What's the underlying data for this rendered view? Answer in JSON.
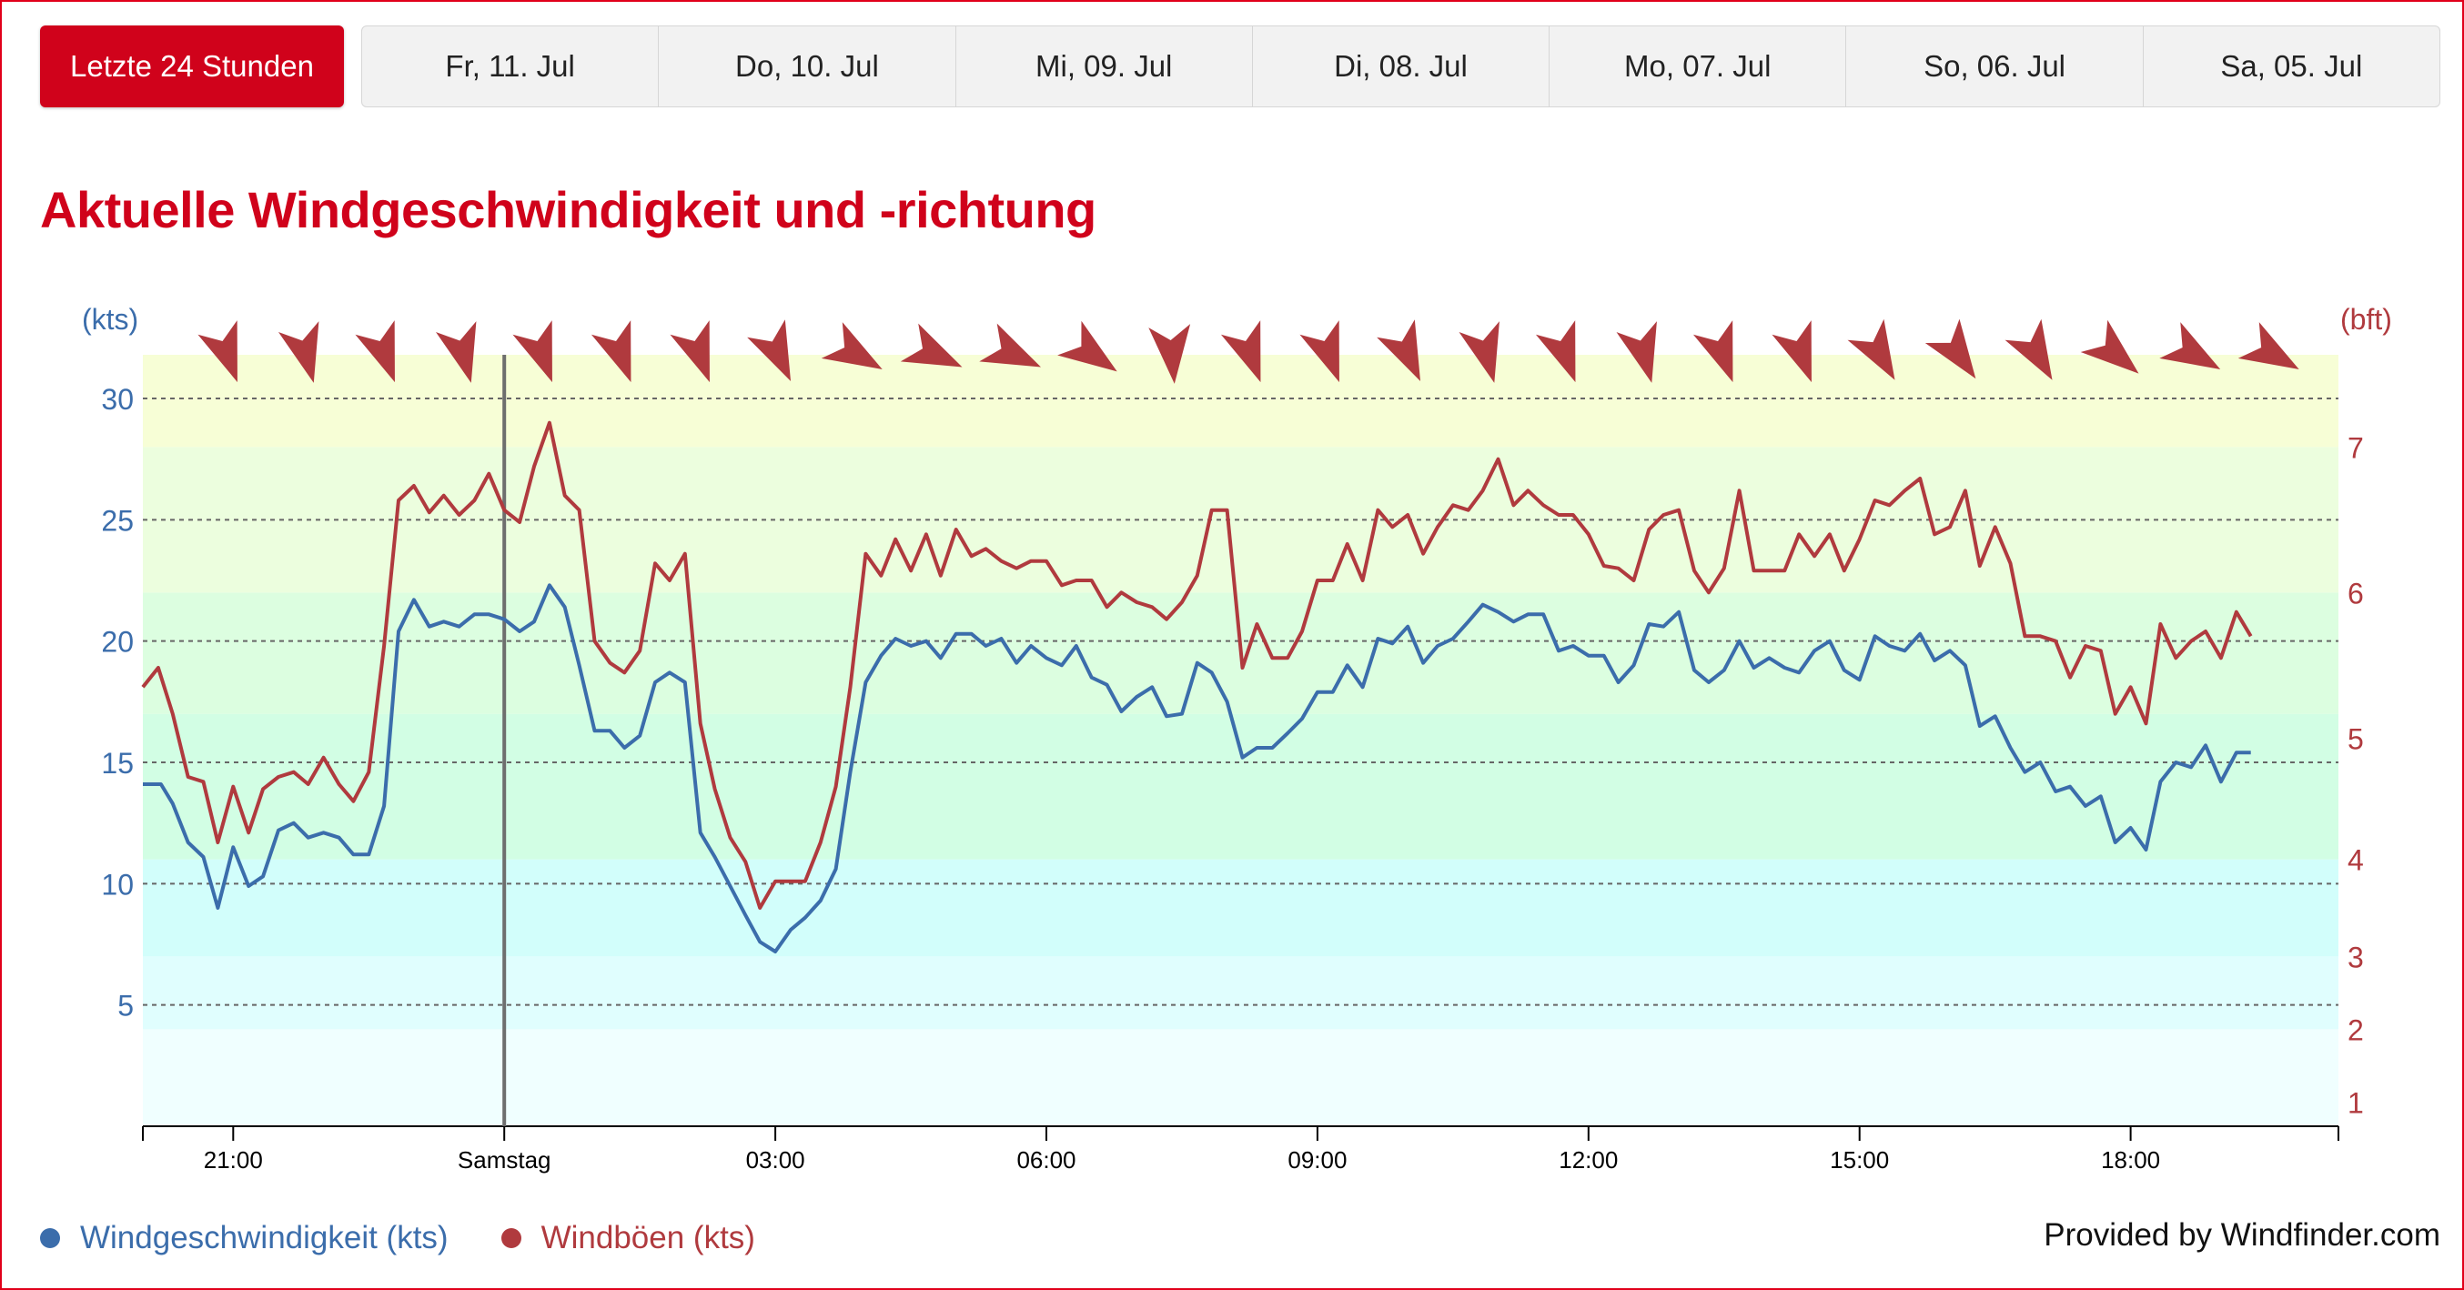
{
  "tabs": {
    "active": "Letzte 24 Stunden",
    "days": [
      "Fr, 11. Jul",
      "Do, 10. Jul",
      "Mi, 09. Jul",
      "Di, 08. Jul",
      "Mo, 07. Jul",
      "So, 06. Jul",
      "Sa, 05. Jul"
    ]
  },
  "title": "Aktuelle Windgeschwindigkeit und -richtung",
  "colors": {
    "speed": "#3b6dab",
    "gust": "#b03a3e",
    "arrow": "#b03a3e",
    "accent": "#d0021b",
    "bands": [
      "#f0ffff",
      "#e0fefe",
      "#d2fefb",
      "#d2fee4",
      "#dcfee0",
      "#ecfede",
      "#f7fed6"
    ]
  },
  "chart_data": {
    "type": "line",
    "x_unit": "hours since 18:00",
    "xlim": [
      -1,
      23.3
    ],
    "ylim": [
      0,
      31.8
    ],
    "y_left_label": "(kts)",
    "y_right_label": "(bft)",
    "y_ticks": [
      5,
      10,
      15,
      20,
      25,
      30
    ],
    "bft_ticks": [
      {
        "label": "1",
        "kts": 1
      },
      {
        "label": "2",
        "kts": 4
      },
      {
        "label": "3",
        "kts": 7
      },
      {
        "label": "4",
        "kts": 11
      },
      {
        "label": "5",
        "kts": 16
      },
      {
        "label": "6",
        "kts": 22
      },
      {
        "label": "7",
        "kts": 28
      }
    ],
    "bft_bands_kts": [
      0,
      4,
      7,
      11,
      17,
      22,
      28,
      31.8
    ],
    "x_ticks": [
      {
        "t": 0,
        "label": "21:00"
      },
      {
        "t": 3,
        "label": "Samstag"
      },
      {
        "t": 6,
        "label": "03:00"
      },
      {
        "t": 9,
        "label": "06:00"
      },
      {
        "t": 12,
        "label": "09:00"
      },
      {
        "t": 15,
        "label": "12:00"
      },
      {
        "t": 18,
        "label": "15:00"
      },
      {
        "t": 21,
        "label": "18:00"
      }
    ],
    "midnight_marker": 3,
    "series": [
      {
        "name": "Windgeschwindigkeit (kts)",
        "values": [
          [
            -1,
            14.1
          ],
          [
            -0.8,
            14.1
          ],
          [
            -0.67,
            13.3
          ],
          [
            -0.5,
            11.7
          ],
          [
            -0.33,
            11.1
          ],
          [
            -0.17,
            9.0
          ],
          [
            0,
            11.5
          ],
          [
            0.17,
            9.9
          ],
          [
            0.33,
            10.3
          ],
          [
            0.5,
            12.2
          ],
          [
            0.67,
            12.5
          ],
          [
            0.83,
            11.9
          ],
          [
            1,
            12.1
          ],
          [
            1.17,
            11.9
          ],
          [
            1.33,
            11.2
          ],
          [
            1.5,
            11.2
          ],
          [
            1.67,
            13.2
          ],
          [
            1.83,
            20.4
          ],
          [
            2,
            21.7
          ],
          [
            2.17,
            20.6
          ],
          [
            2.33,
            20.8
          ],
          [
            2.5,
            20.6
          ],
          [
            2.67,
            21.1
          ],
          [
            2.83,
            21.1
          ],
          [
            3,
            20.9
          ],
          [
            3.17,
            20.4
          ],
          [
            3.33,
            20.8
          ],
          [
            3.5,
            22.3
          ],
          [
            3.67,
            21.4
          ],
          [
            3.83,
            19.0
          ],
          [
            4,
            16.3
          ],
          [
            4.17,
            16.3
          ],
          [
            4.33,
            15.6
          ],
          [
            4.5,
            16.1
          ],
          [
            4.67,
            18.3
          ],
          [
            4.83,
            18.7
          ],
          [
            5,
            18.3
          ],
          [
            5.17,
            12.1
          ],
          [
            5.33,
            11.1
          ],
          [
            5.5,
            9.9
          ],
          [
            5.67,
            8.7
          ],
          [
            5.83,
            7.6
          ],
          [
            6,
            7.2
          ],
          [
            6.17,
            8.1
          ],
          [
            6.33,
            8.6
          ],
          [
            6.5,
            9.3
          ],
          [
            6.67,
            10.6
          ],
          [
            6.83,
            14.6
          ],
          [
            7,
            18.3
          ],
          [
            7.17,
            19.4
          ],
          [
            7.33,
            20.1
          ],
          [
            7.5,
            19.8
          ],
          [
            7.67,
            20.0
          ],
          [
            7.83,
            19.3
          ],
          [
            8,
            20.3
          ],
          [
            8.17,
            20.3
          ],
          [
            8.33,
            19.8
          ],
          [
            8.5,
            20.1
          ],
          [
            8.67,
            19.1
          ],
          [
            8.83,
            19.8
          ],
          [
            9,
            19.3
          ],
          [
            9.17,
            19.0
          ],
          [
            9.33,
            19.8
          ],
          [
            9.5,
            18.5
          ],
          [
            9.67,
            18.2
          ],
          [
            9.83,
            17.1
          ],
          [
            10,
            17.7
          ],
          [
            10.17,
            18.1
          ],
          [
            10.33,
            16.9
          ],
          [
            10.5,
            17.0
          ],
          [
            10.67,
            19.1
          ],
          [
            10.83,
            18.7
          ],
          [
            11,
            17.5
          ],
          [
            11.17,
            15.2
          ],
          [
            11.33,
            15.6
          ],
          [
            11.5,
            15.6
          ],
          [
            11.67,
            16.2
          ],
          [
            11.83,
            16.8
          ],
          [
            12,
            17.9
          ],
          [
            12.17,
            17.9
          ],
          [
            12.33,
            19.0
          ],
          [
            12.5,
            18.1
          ],
          [
            12.67,
            20.1
          ],
          [
            12.83,
            19.9
          ],
          [
            13,
            20.6
          ],
          [
            13.17,
            19.1
          ],
          [
            13.33,
            19.8
          ],
          [
            13.5,
            20.1
          ],
          [
            13.67,
            20.8
          ],
          [
            13.83,
            21.5
          ],
          [
            14,
            21.2
          ],
          [
            14.17,
            20.8
          ],
          [
            14.33,
            21.1
          ],
          [
            14.5,
            21.1
          ],
          [
            14.67,
            19.6
          ],
          [
            14.83,
            19.8
          ],
          [
            15,
            19.4
          ],
          [
            15.17,
            19.4
          ],
          [
            15.33,
            18.3
          ],
          [
            15.5,
            19.0
          ],
          [
            15.67,
            20.7
          ],
          [
            15.83,
            20.6
          ],
          [
            16,
            21.2
          ],
          [
            16.17,
            18.8
          ],
          [
            16.33,
            18.3
          ],
          [
            16.5,
            18.8
          ],
          [
            16.67,
            20.0
          ],
          [
            16.83,
            18.9
          ],
          [
            17,
            19.3
          ],
          [
            17.17,
            18.9
          ],
          [
            17.33,
            18.7
          ],
          [
            17.5,
            19.6
          ],
          [
            17.67,
            20.0
          ],
          [
            17.83,
            18.8
          ],
          [
            18,
            18.4
          ],
          [
            18.17,
            20.2
          ],
          [
            18.33,
            19.8
          ],
          [
            18.5,
            19.6
          ],
          [
            18.67,
            20.3
          ],
          [
            18.83,
            19.2
          ],
          [
            19,
            19.6
          ],
          [
            19.17,
            19.0
          ],
          [
            19.33,
            16.5
          ],
          [
            19.5,
            16.9
          ],
          [
            19.67,
            15.6
          ],
          [
            19.83,
            14.6
          ],
          [
            20,
            15.0
          ],
          [
            20.17,
            13.8
          ],
          [
            20.33,
            14.0
          ],
          [
            20.5,
            13.2
          ],
          [
            20.67,
            13.6
          ],
          [
            20.83,
            11.7
          ],
          [
            21,
            12.3
          ],
          [
            21.17,
            11.4
          ],
          [
            21.33,
            14.2
          ],
          [
            21.5,
            15.0
          ],
          [
            21.67,
            14.8
          ],
          [
            21.83,
            15.7
          ],
          [
            22,
            14.2
          ],
          [
            22.17,
            15.4
          ],
          [
            22.33,
            15.4
          ]
        ]
      },
      {
        "name": "Windböen (kts)",
        "values": [
          [
            -1,
            18.1
          ],
          [
            -0.83,
            18.9
          ],
          [
            -0.67,
            17.0
          ],
          [
            -0.5,
            14.4
          ],
          [
            -0.33,
            14.2
          ],
          [
            -0.17,
            11.7
          ],
          [
            0,
            14.0
          ],
          [
            0.17,
            12.1
          ],
          [
            0.33,
            13.9
          ],
          [
            0.5,
            14.4
          ],
          [
            0.67,
            14.6
          ],
          [
            0.83,
            14.1
          ],
          [
            1,
            15.2
          ],
          [
            1.17,
            14.1
          ],
          [
            1.33,
            13.4
          ],
          [
            1.5,
            14.6
          ],
          [
            1.67,
            19.8
          ],
          [
            1.83,
            25.8
          ],
          [
            2,
            26.4
          ],
          [
            2.17,
            25.3
          ],
          [
            2.33,
            26.0
          ],
          [
            2.5,
            25.2
          ],
          [
            2.67,
            25.8
          ],
          [
            2.83,
            26.9
          ],
          [
            3,
            25.4
          ],
          [
            3.17,
            24.9
          ],
          [
            3.33,
            27.2
          ],
          [
            3.5,
            29.0
          ],
          [
            3.67,
            26.0
          ],
          [
            3.83,
            25.4
          ],
          [
            4,
            20.0
          ],
          [
            4.17,
            19.1
          ],
          [
            4.33,
            18.7
          ],
          [
            4.5,
            19.6
          ],
          [
            4.67,
            23.2
          ],
          [
            4.83,
            22.5
          ],
          [
            5,
            23.6
          ],
          [
            5.17,
            16.6
          ],
          [
            5.33,
            13.9
          ],
          [
            5.5,
            11.9
          ],
          [
            5.67,
            10.9
          ],
          [
            5.83,
            9.0
          ],
          [
            6,
            10.1
          ],
          [
            6.17,
            10.1
          ],
          [
            6.33,
            10.1
          ],
          [
            6.5,
            11.7
          ],
          [
            6.67,
            14.0
          ],
          [
            6.83,
            18.1
          ],
          [
            7,
            23.6
          ],
          [
            7.17,
            22.7
          ],
          [
            7.33,
            24.2
          ],
          [
            7.5,
            22.9
          ],
          [
            7.67,
            24.4
          ],
          [
            7.83,
            22.7
          ],
          [
            8,
            24.6
          ],
          [
            8.17,
            23.5
          ],
          [
            8.33,
            23.8
          ],
          [
            8.5,
            23.3
          ],
          [
            8.67,
            23.0
          ],
          [
            8.83,
            23.3
          ],
          [
            9,
            23.3
          ],
          [
            9.17,
            22.3
          ],
          [
            9.33,
            22.5
          ],
          [
            9.5,
            22.5
          ],
          [
            9.67,
            21.4
          ],
          [
            9.83,
            22.0
          ],
          [
            10,
            21.6
          ],
          [
            10.17,
            21.4
          ],
          [
            10.33,
            20.9
          ],
          [
            10.5,
            21.6
          ],
          [
            10.67,
            22.7
          ],
          [
            10.83,
            25.4
          ],
          [
            11,
            25.4
          ],
          [
            11.17,
            18.9
          ],
          [
            11.33,
            20.7
          ],
          [
            11.5,
            19.3
          ],
          [
            11.67,
            19.3
          ],
          [
            11.83,
            20.4
          ],
          [
            12,
            22.5
          ],
          [
            12.17,
            22.5
          ],
          [
            12.33,
            24.0
          ],
          [
            12.5,
            22.5
          ],
          [
            12.67,
            25.4
          ],
          [
            12.83,
            24.7
          ],
          [
            13,
            25.2
          ],
          [
            13.17,
            23.6
          ],
          [
            13.33,
            24.7
          ],
          [
            13.5,
            25.6
          ],
          [
            13.67,
            25.4
          ],
          [
            13.83,
            26.2
          ],
          [
            14,
            27.5
          ],
          [
            14.17,
            25.6
          ],
          [
            14.33,
            26.2
          ],
          [
            14.5,
            25.6
          ],
          [
            14.67,
            25.2
          ],
          [
            14.83,
            25.2
          ],
          [
            15,
            24.4
          ],
          [
            15.17,
            23.1
          ],
          [
            15.33,
            23.0
          ],
          [
            15.5,
            22.5
          ],
          [
            15.67,
            24.6
          ],
          [
            15.83,
            25.2
          ],
          [
            16,
            25.4
          ],
          [
            16.17,
            22.9
          ],
          [
            16.33,
            22.0
          ],
          [
            16.5,
            23.0
          ],
          [
            16.67,
            26.2
          ],
          [
            16.83,
            22.9
          ],
          [
            17,
            22.9
          ],
          [
            17.17,
            22.9
          ],
          [
            17.33,
            24.4
          ],
          [
            17.5,
            23.5
          ],
          [
            17.67,
            24.4
          ],
          [
            17.83,
            22.9
          ],
          [
            18,
            24.2
          ],
          [
            18.17,
            25.8
          ],
          [
            18.33,
            25.6
          ],
          [
            18.5,
            26.2
          ],
          [
            18.67,
            26.7
          ],
          [
            18.83,
            24.4
          ],
          [
            19,
            24.7
          ],
          [
            19.17,
            26.2
          ],
          [
            19.33,
            23.1
          ],
          [
            19.5,
            24.7
          ],
          [
            19.67,
            23.2
          ],
          [
            19.83,
            20.2
          ],
          [
            20,
            20.2
          ],
          [
            20.17,
            20.0
          ],
          [
            20.33,
            18.5
          ],
          [
            20.5,
            19.8
          ],
          [
            20.67,
            19.6
          ],
          [
            20.83,
            17.0
          ],
          [
            21,
            18.1
          ],
          [
            21.17,
            16.6
          ],
          [
            21.33,
            20.7
          ],
          [
            21.5,
            19.3
          ],
          [
            21.67,
            20.0
          ],
          [
            21.83,
            20.4
          ],
          [
            22,
            19.3
          ],
          [
            22.17,
            21.2
          ],
          [
            22.33,
            20.2
          ]
        ]
      }
    ],
    "direction_deg": [
      340,
      345,
      340,
      345,
      340,
      340,
      340,
      335,
      300,
      295,
      295,
      305,
      355,
      340,
      340,
      335,
      345,
      340,
      345,
      340,
      340,
      330,
      325,
      330,
      310,
      300,
      300
    ]
  },
  "legend": {
    "speed": "Windgeschwindigkeit (kts)",
    "gust": "Windböen (kts)"
  },
  "credit": "Provided by Windfinder.com"
}
